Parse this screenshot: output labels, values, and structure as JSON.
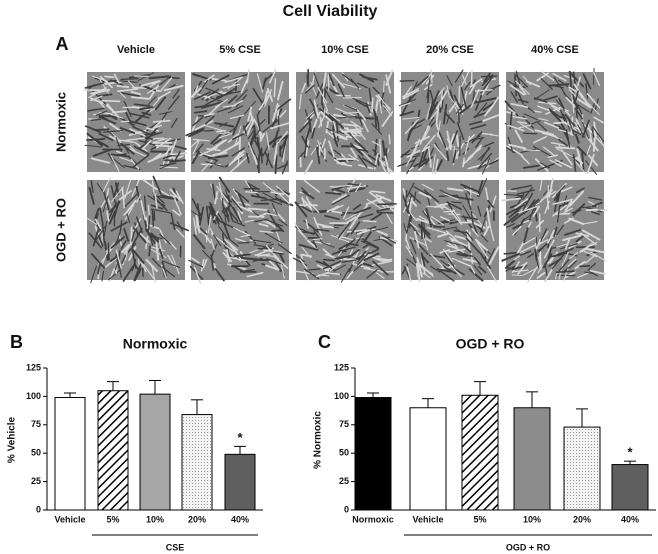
{
  "title": "Cell Viability",
  "panel_a": {
    "label": "A",
    "columns": [
      "Vehicle",
      "5% CSE",
      "10% CSE",
      "20% CSE",
      "40% CSE"
    ],
    "rows": [
      "Normoxic",
      "OGD + RO"
    ]
  },
  "chart_data": [
    {
      "type": "bar",
      "panel": "B",
      "title": "Normoxic",
      "y_label": "% Vehicle",
      "categories": [
        "Vehicle",
        "5%",
        "10%",
        "20%",
        "40%"
      ],
      "values": [
        99,
        105,
        102,
        84,
        49
      ],
      "errors": [
        4,
        8,
        12,
        13,
        7
      ],
      "colors": [
        "#ffffff",
        "#ffffff",
        "#a6a6a6",
        "#eeeeee",
        "#5f5f5f"
      ],
      "patterns": [
        null,
        "hatch",
        null,
        "dots",
        null
      ],
      "group_label": "CSE",
      "group_from": "5%",
      "annotation": "*",
      "annotation_category": "40%",
      "ylim": [
        0,
        125
      ],
      "yticks": [
        0,
        25,
        50,
        75,
        100,
        125
      ]
    },
    {
      "type": "bar",
      "panel": "C",
      "title": "OGD + RO",
      "y_label": "% Normoxic",
      "categories": [
        "Normoxic",
        "Vehicle",
        "5%",
        "10%",
        "20%",
        "40%"
      ],
      "values": [
        99,
        90,
        101,
        90,
        73,
        40
      ],
      "errors": [
        4,
        8,
        12,
        14,
        16,
        3
      ],
      "colors": [
        "#000000",
        "#ffffff",
        "#ffffff",
        "#8c8c8c",
        "#eeeeee",
        "#5f5f5f"
      ],
      "patterns": [
        null,
        null,
        "hatch",
        null,
        "dots",
        null
      ],
      "group_label": "OGD + RO",
      "group_from": "Vehicle",
      "annotation": "*",
      "annotation_category": "40%",
      "ylim": [
        0,
        125
      ],
      "yticks": [
        0,
        25,
        50,
        75,
        100,
        125
      ]
    }
  ]
}
